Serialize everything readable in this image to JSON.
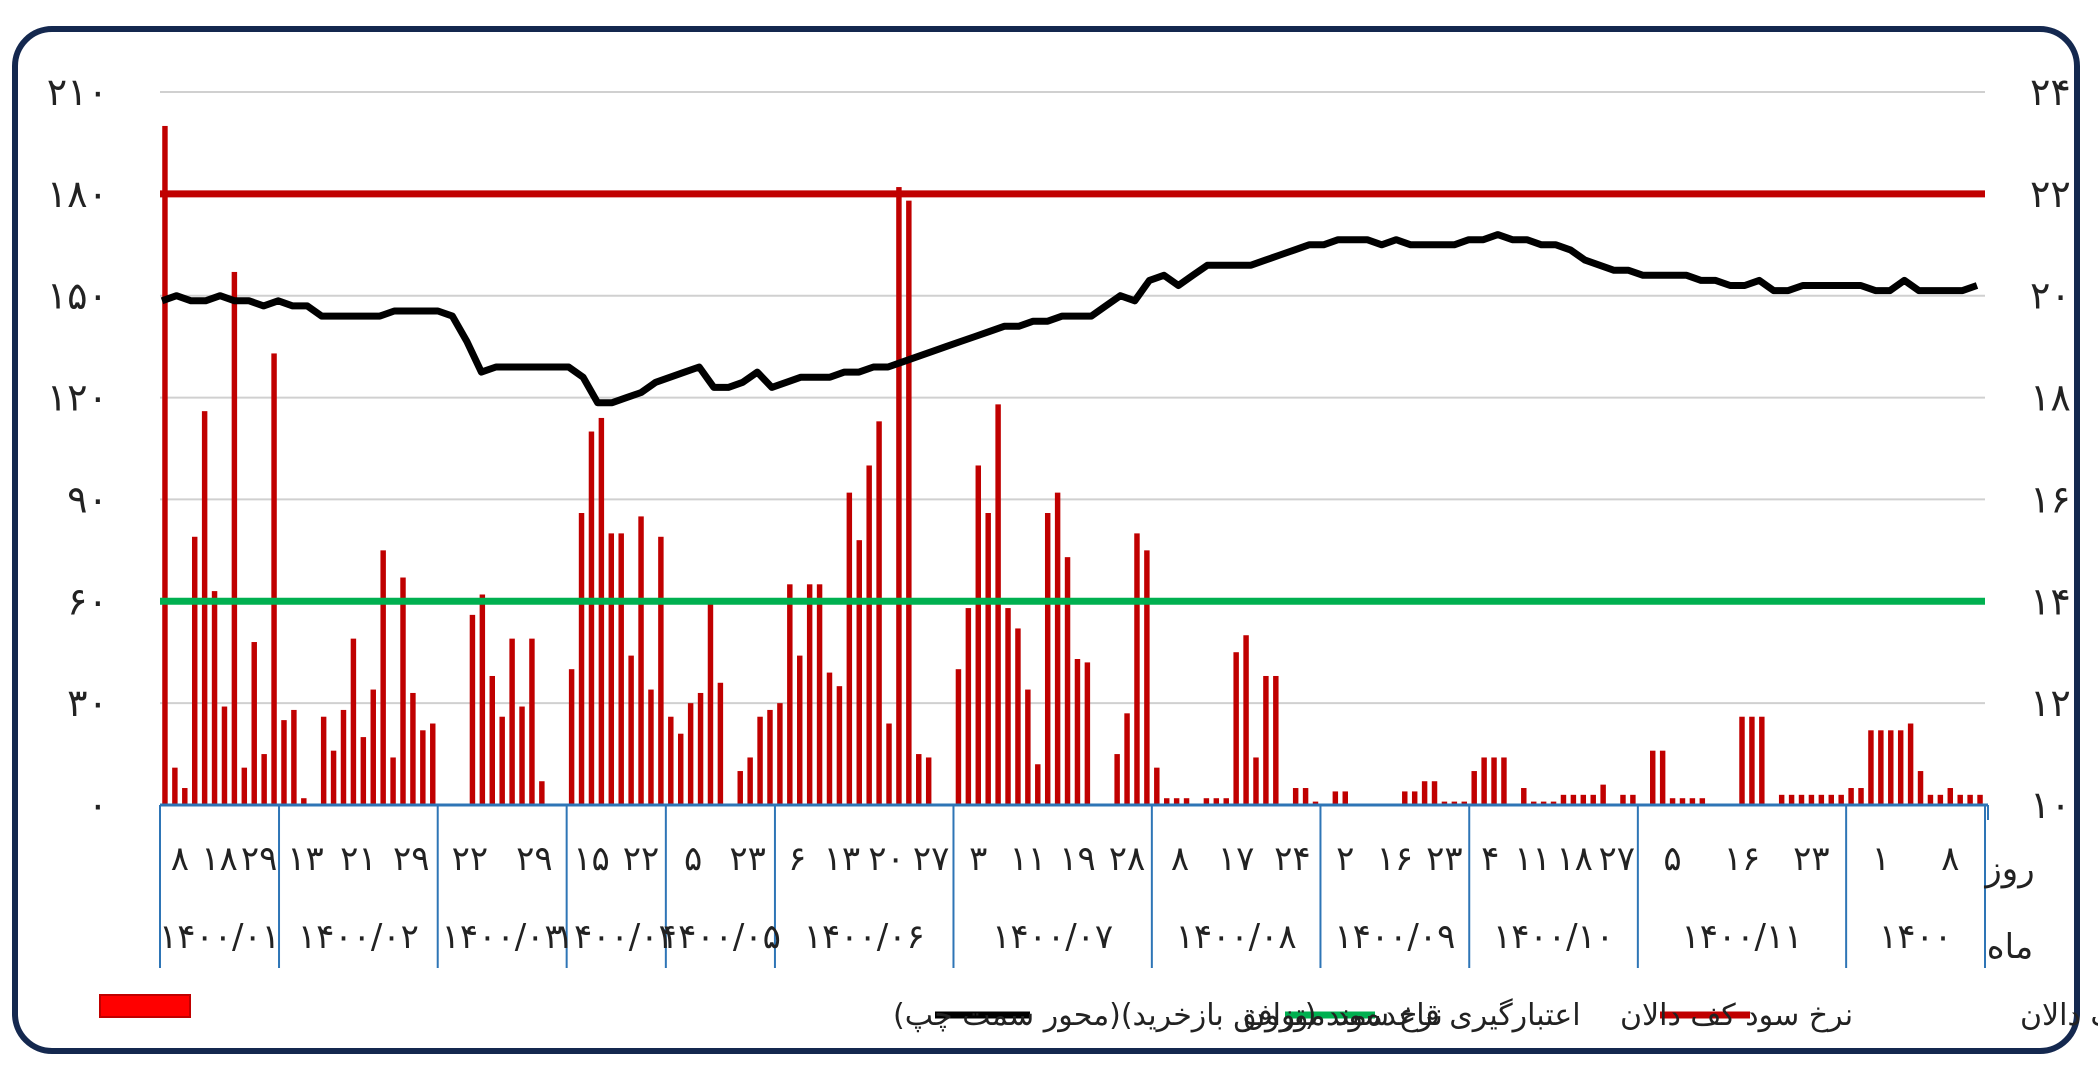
{
  "chart_data": {
    "type": "bar",
    "left_axis": {
      "ticks": [
        "۰",
        "۳۰",
        "۶۰",
        "۹۰",
        "۱۲۰",
        "۱۵۰",
        "۱۸۰",
        "۲۱۰"
      ],
      "values": [
        0,
        30,
        60,
        90,
        120,
        150,
        180,
        210
      ],
      "ylim": [
        0,
        210
      ]
    },
    "right_axis": {
      "ticks": [
        "۱۰",
        "۱۲",
        "۱۴",
        "۱۶",
        "۱۸",
        "۲۰",
        "۲۲",
        "۲۴"
      ],
      "values": [
        10,
        12,
        14,
        16,
        18,
        20,
        22,
        24
      ],
      "ylim": [
        10,
        24
      ]
    },
    "x_row_labels": {
      "day": "روز",
      "month": "ماه"
    },
    "months": [
      {
        "label": "۱۴۰۰/۰۱",
        "days": [
          "۸",
          "۱۸",
          "۲۹"
        ],
        "bars": [
          200,
          11,
          5,
          79,
          116,
          63,
          29,
          157,
          11,
          48,
          15,
          133
        ]
      },
      {
        "label": "۱۴۰۰/۰۲",
        "days": [
          "۱۳",
          "۲۱",
          "۲۹"
        ],
        "bars": [
          25,
          28,
          2,
          0,
          26,
          16,
          28,
          49,
          20,
          34,
          75,
          14,
          67,
          33,
          22,
          24
        ]
      },
      {
        "label": "۱۴۰۰/۰۳",
        "days": [
          "۲۲",
          "۲۹"
        ],
        "bars": [
          0,
          0,
          0,
          56,
          62,
          38,
          26,
          49,
          29,
          49,
          7,
          0,
          0
        ]
      },
      {
        "label": "۱۴۰۰/۰۴",
        "days": [
          "۱۵",
          "۲۲"
        ],
        "bars": [
          40,
          86,
          110,
          114,
          80,
          80,
          44,
          85,
          34,
          79
        ]
      },
      {
        "label": "۱۴۰۰/۰۵",
        "days": [
          "۵",
          "۲۳"
        ],
        "bars": [
          26,
          21,
          30,
          33,
          60,
          36,
          0,
          10,
          14,
          26,
          28
        ]
      },
      {
        "label": "۱۴۰۰/۰۶",
        "days": [
          "۶",
          "۱۳",
          "۲۰",
          "۲۷"
        ],
        "bars": [
          30,
          65,
          44,
          65,
          65,
          39,
          35,
          92,
          78,
          100,
          113,
          24,
          182,
          178,
          15,
          14,
          0,
          0
        ]
      },
      {
        "label": "۱۴۰۰/۰۷",
        "days": [
          "۳",
          "۱۱",
          "۱۹",
          "۲۸"
        ],
        "bars": [
          40,
          58,
          100,
          86,
          118,
          58,
          52,
          34,
          12,
          86,
          92,
          73,
          43,
          42,
          0,
          0,
          15,
          27,
          80,
          75
        ]
      },
      {
        "label": "۱۴۰۰/۰۸",
        "days": [
          "۸",
          "۱۷",
          "۲۴"
        ],
        "bars": [
          11,
          2,
          2,
          2,
          0,
          2,
          2,
          2,
          45,
          50,
          14,
          38,
          38,
          0,
          5,
          5,
          1
        ]
      },
      {
        "label": "۱۴۰۰/۰۹",
        "days": [
          "۲",
          "۱۶",
          "۲۳"
        ],
        "bars": [
          0,
          4,
          4,
          0,
          0,
          0,
          0,
          0,
          4,
          4,
          7,
          7,
          1,
          1,
          1
        ]
      },
      {
        "label": "۱۴۰۰/۱۰",
        "days": [
          "۴",
          "۱۱",
          "۱۸",
          "۲۷"
        ],
        "bars": [
          10,
          14,
          14,
          14,
          0,
          5,
          1,
          1,
          1,
          3,
          3,
          3,
          3,
          6,
          0,
          3,
          3
        ]
      },
      {
        "label": "۱۴۰۰/۱۱",
        "days": [
          "۵",
          "۱۶",
          "۲۳"
        ],
        "bars": [
          0,
          16,
          16,
          2,
          2,
          2,
          2,
          0,
          0,
          0,
          26,
          26,
          26,
          0,
          3,
          3,
          3,
          3,
          3,
          3,
          3
        ]
      },
      {
        "label": "۱۴۰۰",
        "days": [
          "۱",
          "۸"
        ],
        "bars": [
          5,
          5,
          22,
          22,
          22,
          22,
          24,
          10,
          3,
          3,
          5,
          3,
          3,
          3
        ]
      }
    ],
    "series": [
      {
        "name": "نرخ سود سقف دالان",
        "type": "line",
        "axis": "right",
        "color": "#c00000",
        "values": [
          22,
          22
        ]
      },
      {
        "name": "نرخ سود کف دالان",
        "type": "line",
        "axis": "right",
        "color": "#00b050",
        "values": [
          14,
          14
        ]
      },
      {
        "name": "نرخ سود  موزون",
        "type": "line",
        "axis": "right",
        "color": "#000000",
        "values": [
          19.9,
          20.0,
          19.9,
          19.9,
          20.0,
          19.9,
          19.9,
          19.8,
          19.9,
          19.8,
          19.8,
          19.6,
          19.6,
          19.6,
          19.6,
          19.6,
          19.7,
          19.7,
          19.7,
          19.7,
          19.6,
          19.1,
          18.5,
          18.6,
          18.6,
          18.6,
          18.6,
          18.6,
          18.6,
          18.4,
          17.9,
          17.9,
          18.0,
          18.1,
          18.3,
          18.4,
          18.5,
          18.6,
          18.2,
          18.2,
          18.3,
          18.5,
          18.2,
          18.3,
          18.4,
          18.4,
          18.4,
          18.5,
          18.5,
          18.6,
          18.6,
          18.7,
          18.8,
          18.9,
          19.0,
          19.1,
          19.2,
          19.3,
          19.4,
          19.4,
          19.5,
          19.5,
          19.6,
          19.6,
          19.6,
          19.8,
          20.0,
          19.9,
          20.3,
          20.4,
          20.2,
          20.4,
          20.6,
          20.6,
          20.6,
          20.6,
          20.7,
          20.8,
          20.9,
          21.0,
          21.0,
          21.1,
          21.1,
          21.1,
          21.0,
          21.1,
          21.0,
          21.0,
          21.0,
          21.0,
          21.1,
          21.1,
          21.2,
          21.1,
          21.1,
          21.0,
          21.0,
          20.9,
          20.7,
          20.6,
          20.5,
          20.5,
          20.4,
          20.4,
          20.4,
          20.4,
          20.3,
          20.3,
          20.2,
          20.2,
          20.3,
          20.1,
          20.1,
          20.2,
          20.2,
          20.2,
          20.2,
          20.2,
          20.1,
          20.1,
          20.3,
          20.1,
          20.1,
          20.1,
          20.1,
          20.2
        ]
      },
      {
        "name": "اعتبارگیری قاعده‌مند (توافق بازخرید)(محور سمت چپ)",
        "type": "bar",
        "axis": "left",
        "color": "#c00000"
      }
    ],
    "legend": {
      "position": "bottom",
      "items": [
        {
          "label": "نرخ سود سقف دالان",
          "color": "#c00000",
          "kind": "line"
        },
        {
          "label": "نرخ سود کف دالان",
          "color": "#00b050",
          "kind": "line"
        },
        {
          "label": "نرخ سود  موزون",
          "color": "#000000",
          "kind": "line"
        },
        {
          "label": "اعتبارگیری قاعده‌مند (توافق بازخرید)(محور سمت چپ)",
          "color": "#ff0000",
          "kind": "box"
        }
      ]
    },
    "grid": true
  }
}
